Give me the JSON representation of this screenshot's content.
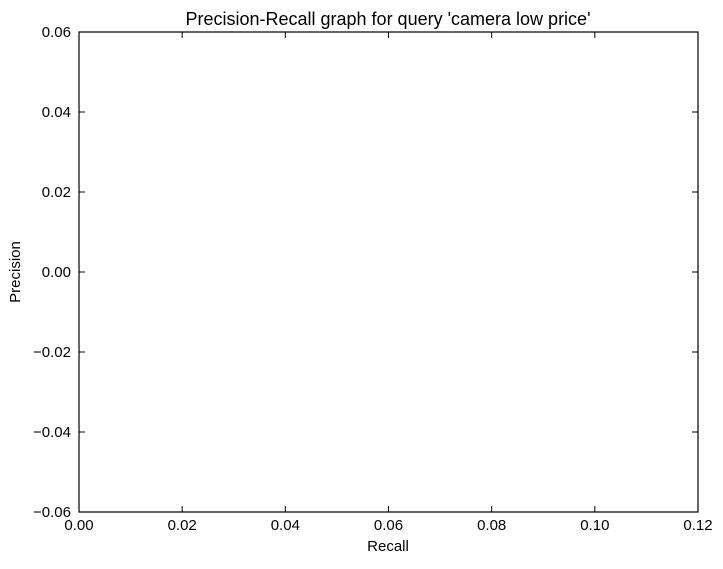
{
  "chart_data": {
    "type": "line",
    "title": "Precision-Recall graph for query 'camera low price'",
    "xlabel": "Recall",
    "ylabel": "Precision",
    "xlim": [
      0.0,
      0.12
    ],
    "ylim": [
      -0.06,
      0.06
    ],
    "xticks": [
      0.0,
      0.02,
      0.04,
      0.06,
      0.08,
      0.1,
      0.12
    ],
    "xtick_labels": [
      "0.00",
      "0.02",
      "0.04",
      "0.06",
      "0.08",
      "0.10",
      "0.12"
    ],
    "yticks": [
      0.06,
      0.04,
      0.02,
      0.0,
      -0.02,
      -0.04,
      -0.06
    ],
    "ytick_labels": [
      "0.06",
      "0.04",
      "0.02",
      "0.00",
      "−0.02",
      "−0.04",
      "−0.06"
    ],
    "series": [],
    "grid": false,
    "legend": "none"
  }
}
